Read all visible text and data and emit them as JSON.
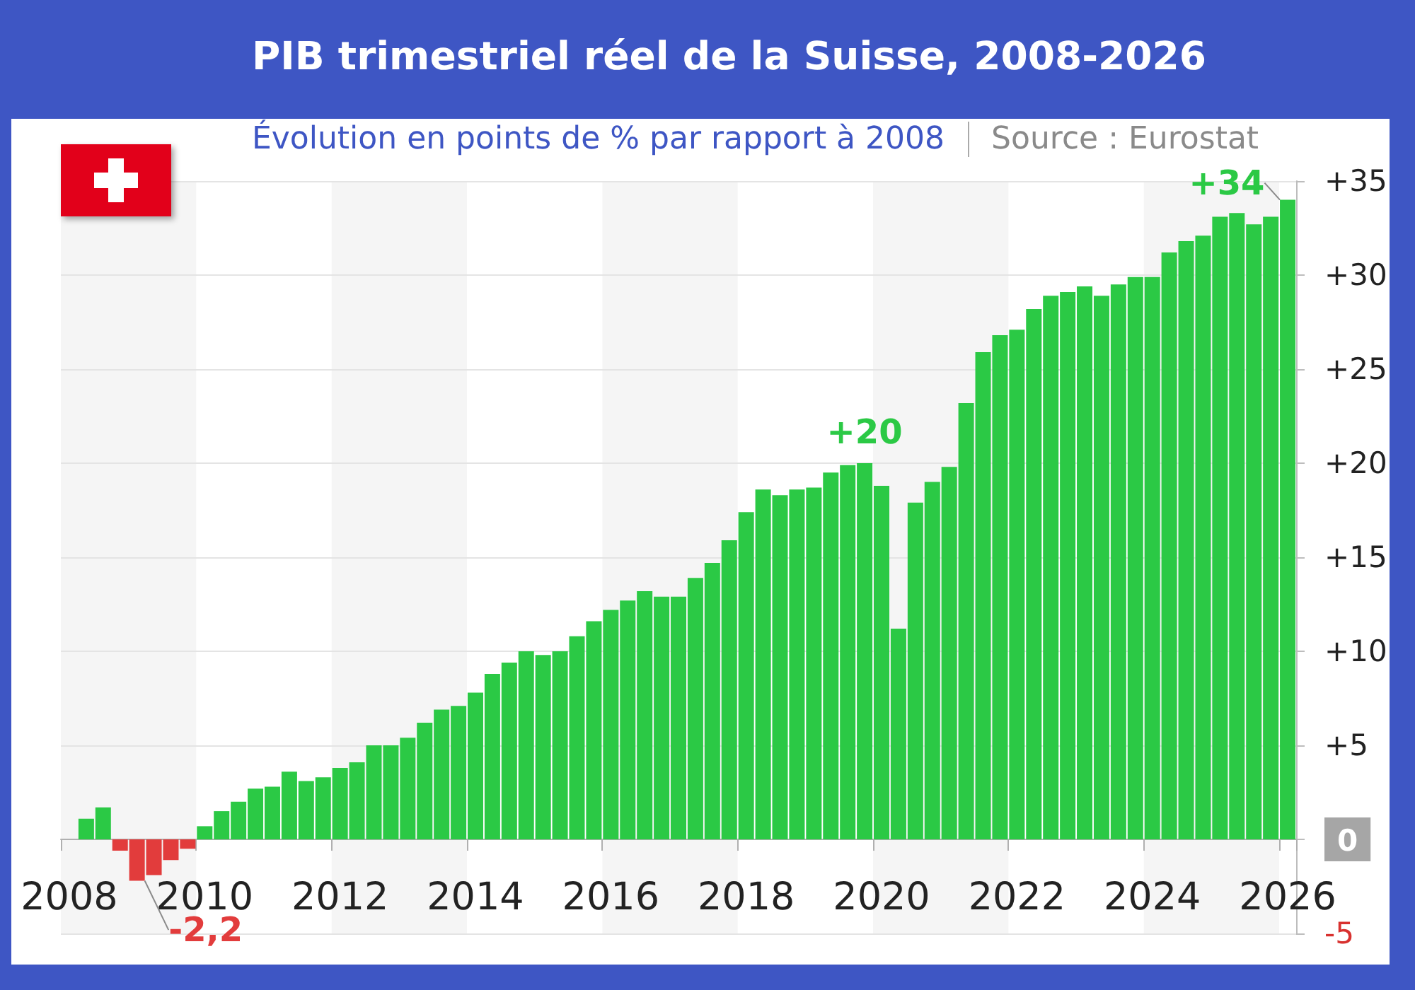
{
  "chart_data": {
    "type": "bar",
    "title": "PIB trimestriel réel de la Suisse, 2008-2026",
    "subtitle": "Évolution en points de % par rapport à 2008",
    "annotations": [
      "Source : Eurostat"
    ],
    "categories": [
      "2008",
      null,
      null,
      null,
      null,
      null,
      null,
      null,
      "2010",
      null,
      null,
      null,
      null,
      null,
      null,
      null,
      "2012",
      null,
      null,
      null,
      null,
      null,
      null,
      null,
      "2014",
      null,
      null,
      null,
      null,
      null,
      null,
      null,
      "2016",
      null,
      null,
      null,
      null,
      null,
      null,
      null,
      "2018",
      null,
      null,
      null,
      null,
      null,
      null,
      null,
      "2020",
      null,
      null,
      null,
      null,
      null,
      null,
      null,
      "2022",
      null,
      null,
      null,
      null,
      null,
      null,
      null,
      "2024",
      null,
      null,
      null,
      null,
      null,
      null,
      null,
      "2026"
    ],
    "values": [
      null,
      1.1,
      1.7,
      -0.6,
      -2.2,
      -1.9,
      -1.1,
      -0.5,
      0.7,
      1.5,
      2.0,
      2.7,
      2.8,
      3.6,
      3.1,
      3.3,
      3.8,
      4.1,
      5.0,
      5.0,
      5.4,
      6.2,
      6.9,
      7.1,
      7.8,
      8.8,
      9.4,
      10.0,
      9.8,
      10.0,
      10.8,
      11.6,
      12.2,
      12.7,
      13.2,
      12.9,
      12.9,
      13.9,
      14.7,
      15.9,
      17.4,
      18.6,
      18.3,
      18.6,
      18.7,
      19.5,
      19.9,
      20,
      18.8,
      11.2,
      17.9,
      19.0,
      19.8,
      23.2,
      25.9,
      26.8,
      27.1,
      28.2,
      28.9,
      29.1,
      29.4,
      28.9,
      29.5,
      29.9,
      29.9,
      31.2,
      31.8,
      32.1,
      33.1,
      33.3,
      32.7,
      33.1,
      34
    ],
    "colors": [
      "#2bc945",
      "#2bc945",
      "#2bc945",
      "#e23c3c",
      "#e23c3c",
      "#e23c3c",
      "#e23c3c",
      "#e23c3c",
      "#2bc945",
      "#2bc945",
      "#2bc945",
      "#2bc945",
      "#2bc945",
      "#2bc945",
      "#2bc945",
      "#2bc945",
      "#2bc945",
      "#2bc945",
      "#2bc945",
      "#2bc945",
      "#2bc945",
      "#2bc945",
      "#2bc945",
      "#2bc945",
      "#2bc945",
      "#2bc945",
      "#2bc945",
      "#2bc945",
      "#2bc945",
      "#2bc945",
      "#2bc945",
      "#2bc945",
      "#2bc945",
      "#2bc945",
      "#2bc945",
      "#2bc945",
      "#2bc945",
      "#2bc945",
      "#2bc945",
      "#2bc945",
      "#2bc945",
      "#2bc945",
      "#2bc945",
      "#2bc945",
      "#2bc945",
      "#2bc945",
      "#2bc945",
      "#2bc945",
      "#2bc945",
      "#2bc945",
      "#2bc945",
      "#2bc945",
      "#2bc945",
      "#2bc945",
      "#2bc945",
      "#2bc945",
      "#2bc945",
      "#2bc945",
      "#2bc945",
      "#2bc945",
      "#2bc945",
      "#2bc945",
      "#2bc945",
      "#2bc945",
      "#2bc945",
      "#2bc945",
      "#2bc945",
      "#2bc945",
      "#2bc945",
      "#2bc945",
      "#2bc945",
      "#2bc945",
      "#2bc945"
    ],
    "value_labels": [
      null,
      null,
      null,
      null,
      "-2,2",
      null,
      null,
      null,
      null,
      null,
      null,
      null,
      null,
      null,
      null,
      null,
      null,
      null,
      null,
      null,
      null,
      null,
      null,
      null,
      null,
      null,
      null,
      null,
      null,
      null,
      null,
      null,
      null,
      null,
      null,
      null,
      null,
      null,
      null,
      null,
      null,
      null,
      null,
      null,
      null,
      null,
      null,
      "+20",
      null,
      null,
      null,
      null,
      null,
      null,
      null,
      null,
      null,
      null,
      null,
      null,
      null,
      null,
      null,
      null,
      null,
      null,
      null,
      null,
      null,
      null,
      null,
      null,
      "+34"
    ],
    "ylim": [
      -5,
      35
    ],
    "yticks": [
      {
        "value": -5,
        "label": "-5"
      },
      0,
      {
        "value": 5,
        "label": "+5"
      },
      {
        "value": 10,
        "label": "+10"
      },
      {
        "value": 15,
        "label": "+15"
      },
      {
        "value": 20,
        "label": "+20"
      },
      {
        "value": 25,
        "label": "+25"
      },
      {
        "value": 30,
        "label": "+30"
      },
      {
        "value": 35,
        "label": "+35"
      }
    ],
    "bands": [
      {
        "axis": "x",
        "from": "2008",
        "to": "2010",
        "color": "#f5f5f5"
      },
      {
        "axis": "x",
        "from": "2012",
        "to": "2014",
        "color": "#f5f5f5"
      },
      {
        "axis": "x",
        "from": "2016",
        "to": "2018",
        "color": "#f5f5f5"
      },
      {
        "axis": "x",
        "from": "2020",
        "to": "2022",
        "color": "#f5f5f5"
      },
      {
        "axis": "x",
        "from": "2024",
        "to": "2026",
        "color": "#f5f5f5"
      }
    ],
    "grid": "y"
  }
}
